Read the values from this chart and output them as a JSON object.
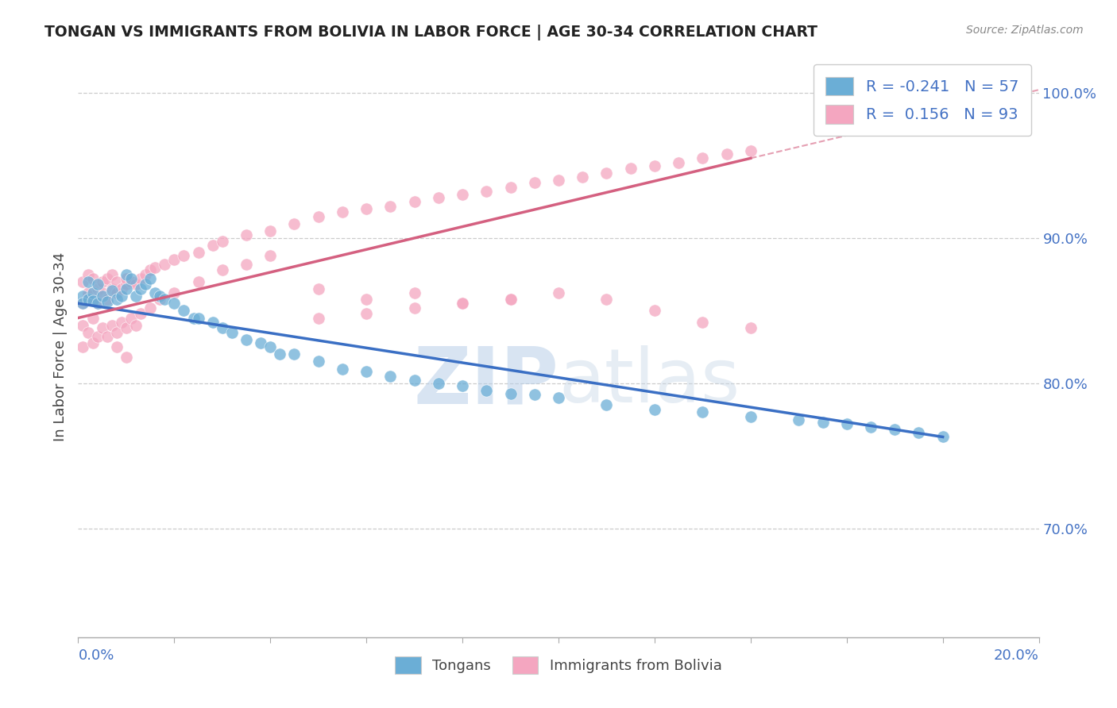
{
  "title": "TONGAN VS IMMIGRANTS FROM BOLIVIA IN LABOR FORCE | AGE 30-34 CORRELATION CHART",
  "source_text": "Source: ZipAtlas.com",
  "ylabel": "In Labor Force | Age 30-34",
  "xlim": [
    0.0,
    0.2
  ],
  "ylim": [
    0.625,
    1.025
  ],
  "legend_blue_r": "-0.241",
  "legend_blue_n": "57",
  "legend_pink_r": "0.156",
  "legend_pink_n": "93",
  "legend_label_blue": "Tongans",
  "legend_label_pink": "Immigrants from Bolivia",
  "blue_color": "#6baed6",
  "pink_color": "#f4a6c0",
  "blue_line_color": "#3a6fc4",
  "pink_line_color": "#d46080",
  "blue_trend_x0": 0.0,
  "blue_trend_y0": 0.855,
  "blue_trend_x1": 0.18,
  "blue_trend_y1": 0.763,
  "pink_trend_x0": 0.0,
  "pink_trend_y0": 0.845,
  "pink_trend_x1": 0.14,
  "pink_trend_y1": 0.955,
  "tongans_x": [
    0.001,
    0.001,
    0.002,
    0.002,
    0.003,
    0.003,
    0.004,
    0.004,
    0.005,
    0.006,
    0.007,
    0.008,
    0.009,
    0.01,
    0.01,
    0.011,
    0.012,
    0.013,
    0.014,
    0.015,
    0.016,
    0.017,
    0.018,
    0.02,
    0.022,
    0.024,
    0.025,
    0.028,
    0.03,
    0.032,
    0.035,
    0.038,
    0.04,
    0.042,
    0.045,
    0.05,
    0.055,
    0.06,
    0.065,
    0.07,
    0.075,
    0.08,
    0.085,
    0.09,
    0.095,
    0.1,
    0.11,
    0.12,
    0.13,
    0.14,
    0.15,
    0.155,
    0.16,
    0.165,
    0.17,
    0.175,
    0.18
  ],
  "tongans_y": [
    0.86,
    0.855,
    0.87,
    0.858,
    0.862,
    0.857,
    0.868,
    0.855,
    0.86,
    0.856,
    0.864,
    0.858,
    0.86,
    0.875,
    0.865,
    0.872,
    0.86,
    0.865,
    0.868,
    0.872,
    0.862,
    0.86,
    0.858,
    0.855,
    0.85,
    0.845,
    0.845,
    0.842,
    0.838,
    0.835,
    0.83,
    0.828,
    0.825,
    0.82,
    0.82,
    0.815,
    0.81,
    0.808,
    0.805,
    0.802,
    0.8,
    0.798,
    0.795,
    0.793,
    0.792,
    0.79,
    0.785,
    0.782,
    0.78,
    0.777,
    0.775,
    0.773,
    0.772,
    0.77,
    0.768,
    0.766,
    0.763
  ],
  "bolivia_x": [
    0.001,
    0.001,
    0.002,
    0.002,
    0.002,
    0.003,
    0.003,
    0.004,
    0.004,
    0.005,
    0.005,
    0.006,
    0.006,
    0.007,
    0.007,
    0.008,
    0.008,
    0.009,
    0.01,
    0.01,
    0.011,
    0.012,
    0.013,
    0.014,
    0.015,
    0.016,
    0.018,
    0.02,
    0.022,
    0.025,
    0.028,
    0.03,
    0.035,
    0.04,
    0.045,
    0.05,
    0.055,
    0.06,
    0.065,
    0.07,
    0.075,
    0.08,
    0.085,
    0.09,
    0.095,
    0.1,
    0.105,
    0.11,
    0.115,
    0.12,
    0.125,
    0.13,
    0.135,
    0.14
  ],
  "bolivia_y": [
    0.855,
    0.87,
    0.86,
    0.875,
    0.862,
    0.858,
    0.872,
    0.865,
    0.855,
    0.87,
    0.862,
    0.858,
    0.872,
    0.865,
    0.875,
    0.862,
    0.87,
    0.865,
    0.868,
    0.872,
    0.87,
    0.868,
    0.872,
    0.875,
    0.878,
    0.88,
    0.882,
    0.885,
    0.888,
    0.89,
    0.895,
    0.898,
    0.902,
    0.905,
    0.91,
    0.915,
    0.918,
    0.92,
    0.922,
    0.925,
    0.928,
    0.93,
    0.932,
    0.935,
    0.938,
    0.94,
    0.942,
    0.945,
    0.948,
    0.95,
    0.952,
    0.955,
    0.958,
    0.96
  ],
  "bolivia_scatter_extra_x": [
    0.001,
    0.001,
    0.002,
    0.003,
    0.003,
    0.004,
    0.005,
    0.006,
    0.007,
    0.008,
    0.009,
    0.01,
    0.011,
    0.012,
    0.013,
    0.015,
    0.017,
    0.02,
    0.025,
    0.03,
    0.035,
    0.04,
    0.05,
    0.06,
    0.07,
    0.08,
    0.09,
    0.1,
    0.11,
    0.12,
    0.13,
    0.14,
    0.05,
    0.06,
    0.07,
    0.08,
    0.09,
    0.008,
    0.01
  ],
  "bolivia_scatter_extra_y": [
    0.84,
    0.825,
    0.835,
    0.828,
    0.845,
    0.832,
    0.838,
    0.832,
    0.84,
    0.835,
    0.842,
    0.838,
    0.845,
    0.84,
    0.848,
    0.852,
    0.858,
    0.862,
    0.87,
    0.878,
    0.882,
    0.888,
    0.865,
    0.858,
    0.862,
    0.855,
    0.858,
    0.862,
    0.858,
    0.85,
    0.842,
    0.838,
    0.845,
    0.848,
    0.852,
    0.855,
    0.858,
    0.825,
    0.818
  ]
}
